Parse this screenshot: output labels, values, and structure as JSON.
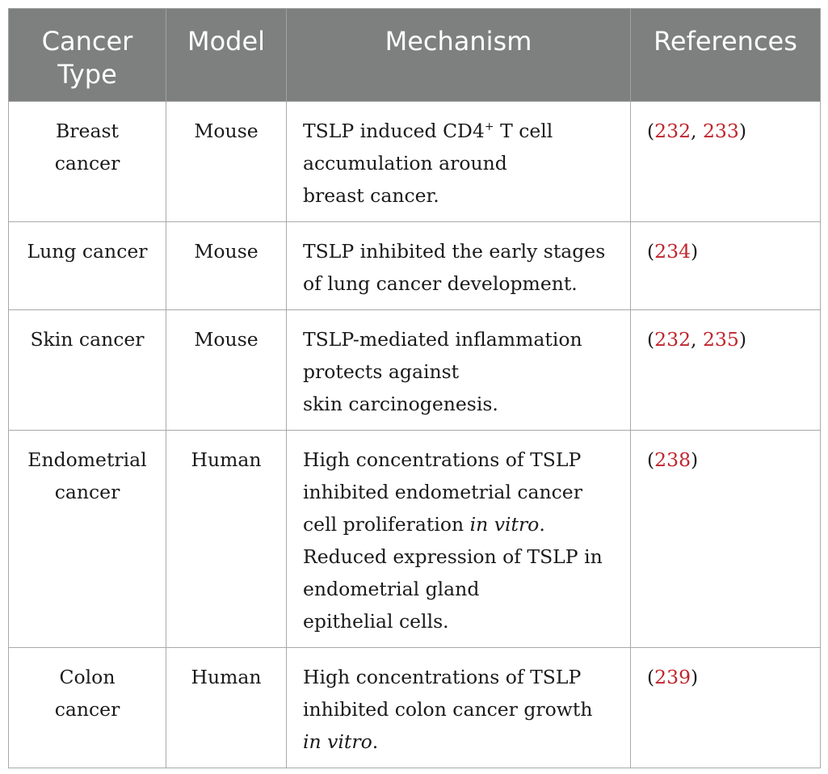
{
  "table": {
    "headers": [
      "Cancer Type",
      "Model",
      "Mechanism",
      "References"
    ],
    "rows": [
      {
        "cancer_type": "Breast cancer",
        "model": "Mouse",
        "mechanism": "TSLP induced CD4+ T cell accumulation around breast cancer.",
        "references": [
          "232",
          "233"
        ]
      },
      {
        "cancer_type": "Lung cancer",
        "model": "Mouse",
        "mechanism": "TSLP inhibited the early stages of lung cancer development.",
        "references": [
          "234"
        ]
      },
      {
        "cancer_type": "Skin cancer",
        "model": "Mouse",
        "mechanism": "TSLP-mediated inflammation protects against skin carcinogenesis.",
        "references": [
          "232",
          "235"
        ]
      },
      {
        "cancer_type": "Endometrial cancer",
        "model": "Human",
        "mechanism": "High concentrations of TSLP inhibited endometrial cancer cell proliferation in vitro. Reduced expression of TSLP in endometrial gland epithelial cells.",
        "references": [
          "238"
        ]
      },
      {
        "cancer_type": "Colon cancer",
        "model": "Human",
        "mechanism": "High concentrations of TSLP inhibited colon cancer growth in vitro.",
        "references": [
          "239"
        ]
      }
    ]
  },
  "colors": {
    "header_bg": "#7e8080",
    "header_text": "#ffffff",
    "reference_link": "#c0262d",
    "border": "#a9a9a9"
  }
}
